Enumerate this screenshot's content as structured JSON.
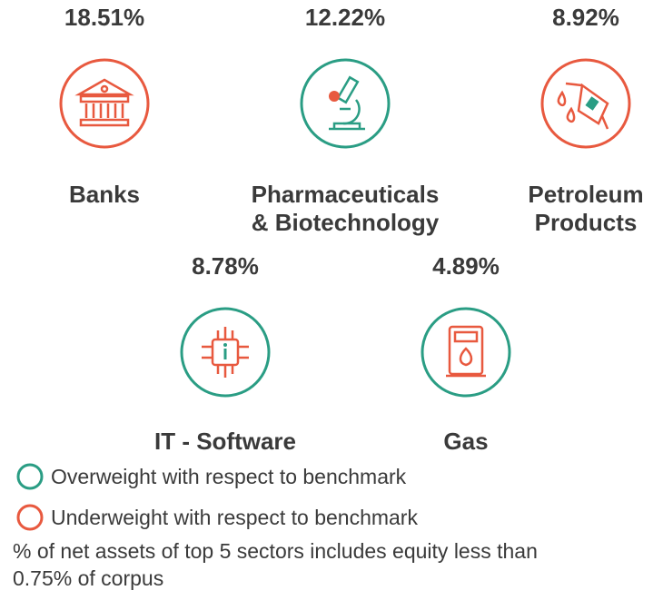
{
  "sectors": [
    {
      "percent": "18.51%",
      "name": [
        "Banks"
      ],
      "ring_color": "#e8593f"
    },
    {
      "percent": "12.22%",
      "name": [
        "Pharmaceuticals",
        "& Biotechnology"
      ],
      "ring_color": "#2a9d84"
    },
    {
      "percent": "8.92%",
      "name": [
        "Petroleum",
        "Products"
      ],
      "ring_color": "#e8593f"
    },
    {
      "percent": "8.78%",
      "name": [
        "IT - Software"
      ],
      "ring_color": "#2a9d84"
    },
    {
      "percent": "4.89%",
      "name": [
        "Gas"
      ],
      "ring_color": "#2a9d84"
    }
  ],
  "legend": [
    {
      "label": "Overweight with respect to benchmark",
      "color": "#2a9d84"
    },
    {
      "label": "Underweight with respect to benchmark",
      "color": "#e8593f"
    }
  ],
  "footnote": [
    "% of net assets of top 5 sectors includes equity less than",
    "0.75% of corpus"
  ]
}
